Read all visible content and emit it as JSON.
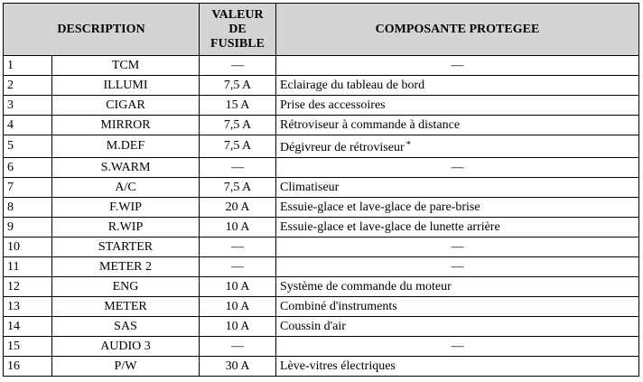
{
  "headers": {
    "description": "DESCRIPTION",
    "value_line1": "VALEUR",
    "value_line2": "DE",
    "value_line3": "FUSIBLE",
    "component": "COMPOSANTE PROTEGEE"
  },
  "rows": [
    {
      "num": "1",
      "name": "TCM",
      "value": "—",
      "component": "—"
    },
    {
      "num": "2",
      "name": "ILLUMI",
      "value": "7,5 A",
      "component": "Eclairage du tableau de bord"
    },
    {
      "num": "3",
      "name": "CIGAR",
      "value": "15 A",
      "component": "Prise des accessoires"
    },
    {
      "num": "4",
      "name": "MIRROR",
      "value": "7,5 A",
      "component": "Rétroviseur à commande à distance"
    },
    {
      "num": "5",
      "name": "M.DEF",
      "value": "7,5 A",
      "component": "Dégivreur de rétroviseur",
      "mark": "*"
    },
    {
      "num": "6",
      "name": "S.WARM",
      "value": "—",
      "component": "—"
    },
    {
      "num": "7",
      "name": "A/C",
      "value": "7,5 A",
      "component": "Climatiseur"
    },
    {
      "num": "8",
      "name": "F.WIP",
      "value": "20 A",
      "component": "Essuie-glace et lave-glace de pare-brise"
    },
    {
      "num": "9",
      "name": "R.WIP",
      "value": "10 A",
      "component": "Essuie-glace et lave-glace de lunette arrière"
    },
    {
      "num": "10",
      "name": "STARTER",
      "value": "—",
      "component": "—"
    },
    {
      "num": "11",
      "name": "METER 2",
      "value": "—",
      "component": "—"
    },
    {
      "num": "12",
      "name": "ENG",
      "value": "10 A",
      "component": "Système de commande du moteur"
    },
    {
      "num": "13",
      "name": "METER",
      "value": "10 A",
      "component": "Combiné d'instruments"
    },
    {
      "num": "14",
      "name": "SAS",
      "value": "10 A",
      "component": "Coussin d'air"
    },
    {
      "num": "15",
      "name": "AUDIO 3",
      "value": "—",
      "component": "—"
    },
    {
      "num": "16",
      "name": "P/W",
      "value": "30 A",
      "component": "Lève-vitres électriques"
    }
  ]
}
